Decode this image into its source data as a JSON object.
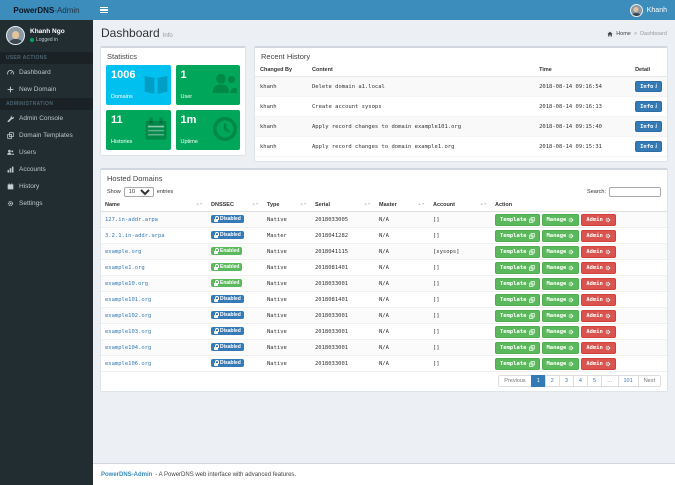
{
  "navbar": {
    "brand_bold": "PowerDNS",
    "brand_rest": "-Admin",
    "menu_icon": "hamburger-icon",
    "user_name": "Khanh",
    "user_avatar_icon": "avatar"
  },
  "sidebar": {
    "user": {
      "name": "Khanh Ngo",
      "status": "Logged in",
      "status_color": "#00a65a"
    },
    "sections": [
      {
        "label": "USER ACTIONS",
        "items": [
          {
            "label": "Dashboard",
            "icon": "gauge-icon"
          },
          {
            "label": "New Domain",
            "icon": "plus-icon"
          }
        ]
      },
      {
        "label": "ADMINISTRATION",
        "items": [
          {
            "label": "Admin Console",
            "icon": "wrench-icon"
          },
          {
            "label": "Domain Templates",
            "icon": "clone-icon"
          },
          {
            "label": "Users",
            "icon": "users-icon"
          },
          {
            "label": "Accounts",
            "icon": "chart-icon"
          },
          {
            "label": "History",
            "icon": "calendar-icon"
          },
          {
            "label": "Settings",
            "icon": "gear-icon"
          }
        ]
      }
    ]
  },
  "page_header": {
    "title": "Dashboard",
    "subtitle": "Info",
    "breadcrumb_home": "Home",
    "breadcrumb_current": "Dashboard",
    "home_icon": "home-icon"
  },
  "stats": {
    "panel_title": "Statistics",
    "tiles": [
      {
        "value": "1006",
        "label": "Domains",
        "color": "#00c0ef",
        "icon": "book-icon"
      },
      {
        "value": "1",
        "label": "User",
        "color": "#00a65a",
        "icon": "users-icon"
      },
      {
        "value": "11",
        "label": "Histories",
        "color": "#00a65a",
        "icon": "calendar-icon"
      },
      {
        "value": "1m",
        "label": "Uptime",
        "color": "#00a65a",
        "icon": "clock-icon"
      }
    ]
  },
  "recent_history": {
    "panel_title": "Recent History",
    "columns": {
      "changed_by": "Changed By",
      "content": "Content",
      "time": "Time",
      "detail": "Detail"
    },
    "detail_button_label": "Info",
    "rows": [
      {
        "changed_by": "khanh",
        "content": "Delete domain a1.local",
        "time": "2018-08-14 09:16:54"
      },
      {
        "changed_by": "khanh",
        "content": "Create account sysops",
        "time": "2018-08-14 09:16:13"
      },
      {
        "changed_by": "khanh",
        "content": "Apply record changes to domain example101.org",
        "time": "2018-08-14 09:15:40"
      },
      {
        "changed_by": "khanh",
        "content": "Apply record changes to domain example1.org",
        "time": "2018-08-14 09:15:31"
      }
    ]
  },
  "hosted": {
    "panel_title": "Hosted Domains",
    "show_label": "Show",
    "page_size": "10",
    "entries_label": "entries",
    "search_label": "Search:",
    "columns": {
      "name": "Name",
      "dnssec": "DNSSEC",
      "type": "Type",
      "serial": "Serial",
      "master": "Master",
      "account": "Account",
      "action": "Action"
    },
    "action_labels": {
      "template": "Template",
      "manage": "Manage",
      "admin": "Admin"
    },
    "badge_colors": {
      "enabled": "#5cb85c",
      "disabled": "#337ab7"
    },
    "rows": [
      {
        "name": "127.in-addr.arpa",
        "dnssec": "Disabled",
        "type": "Native",
        "serial": "2018033005",
        "master": "N/A",
        "account": "[]"
      },
      {
        "name": "3.2.1.in-addr.arpa",
        "dnssec": "Disabled",
        "type": "Master",
        "serial": "2018041282",
        "master": "N/A",
        "account": "[]"
      },
      {
        "name": "example.org",
        "dnssec": "Enabled",
        "type": "Native",
        "serial": "2018041115",
        "master": "N/A",
        "account": "[sysops]"
      },
      {
        "name": "example1.org",
        "dnssec": "Enabled",
        "type": "Native",
        "serial": "2018081401",
        "master": "N/A",
        "account": "[]"
      },
      {
        "name": "example10.org",
        "dnssec": "Enabled",
        "type": "Native",
        "serial": "2018033001",
        "master": "N/A",
        "account": "[]"
      },
      {
        "name": "example101.org",
        "dnssec": "Disabled",
        "type": "Native",
        "serial": "2018081401",
        "master": "N/A",
        "account": "[]"
      },
      {
        "name": "example102.org",
        "dnssec": "Disabled",
        "type": "Native",
        "serial": "2018033001",
        "master": "N/A",
        "account": "[]"
      },
      {
        "name": "example103.org",
        "dnssec": "Disabled",
        "type": "Native",
        "serial": "2018033001",
        "master": "N/A",
        "account": "[]"
      },
      {
        "name": "example104.org",
        "dnssec": "Disabled",
        "type": "Native",
        "serial": "2018033001",
        "master": "N/A",
        "account": "[]"
      },
      {
        "name": "example106.org",
        "dnssec": "Disabled",
        "type": "Native",
        "serial": "2018033001",
        "master": "N/A",
        "account": "[]"
      }
    ],
    "pagination": {
      "previous": "Previous",
      "pages": [
        "1",
        "2",
        "3",
        "4",
        "5",
        "…",
        "101"
      ],
      "active_page": "1",
      "next": "Next"
    }
  },
  "footer": {
    "brand": "PowerDNS-Admin",
    "text": "- A PowerDNS web interface with advanced features."
  },
  "colors": {
    "navbar": "#3c8dbc",
    "sidebar": "#222d32",
    "aqua": "#00c0ef",
    "green": "#00a65a",
    "primary": "#337ab7",
    "success": "#5cb85c",
    "danger": "#d9534f"
  }
}
